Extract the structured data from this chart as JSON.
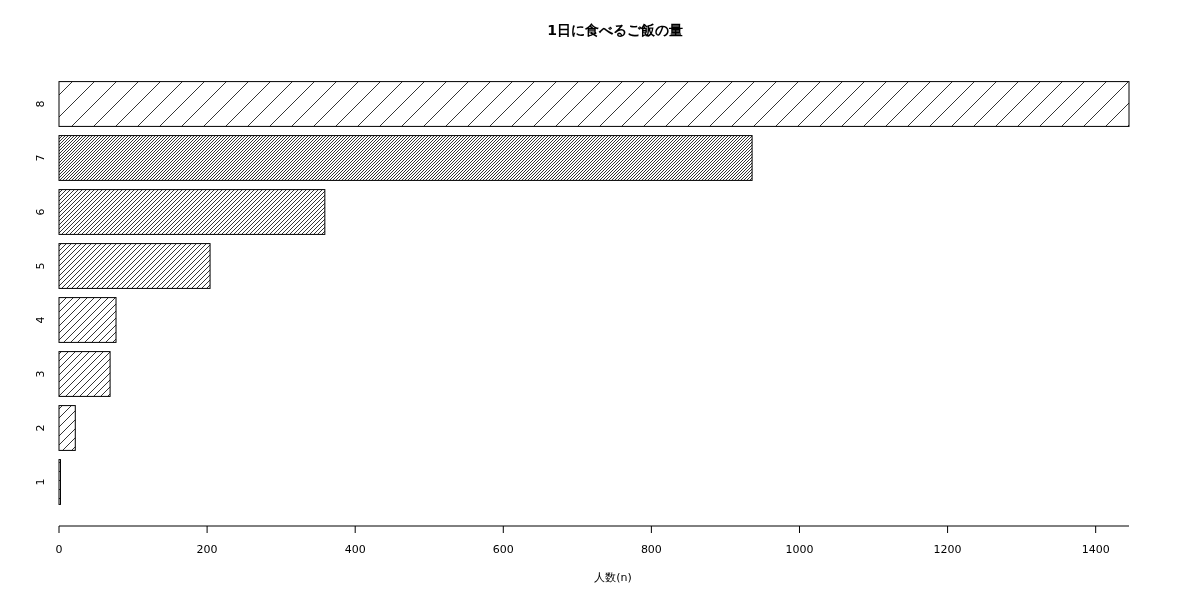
{
  "chart_data": {
    "type": "bar",
    "orientation": "horizontal",
    "title": "1日に食べるご飯の量",
    "xlabel": "人数(n)",
    "categories": [
      "8",
      "7",
      "6",
      "5",
      "4",
      "3",
      "2",
      "1"
    ],
    "values": [
      1445,
      936,
      359,
      204,
      77,
      69,
      22,
      2
    ],
    "color": "#000000",
    "xlim": [
      0,
      1445
    ],
    "xticks": [
      0,
      200,
      400,
      600,
      800,
      1000,
      1200,
      1400
    ],
    "grid": false
  }
}
